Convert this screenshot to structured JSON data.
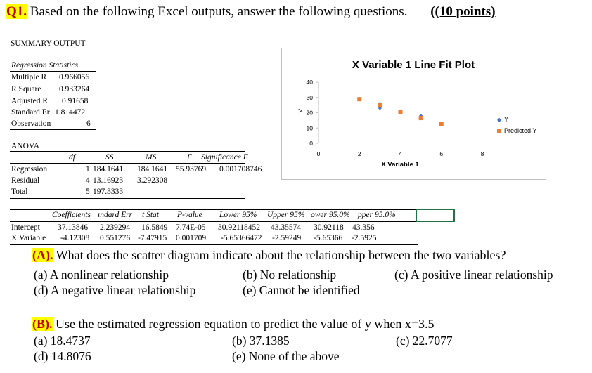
{
  "heading": {
    "number": "Q1.",
    "text": " Based on the following Excel outputs, answer the following questions.",
    "points": "(10 points)"
  },
  "summary": {
    "title": "SUMMARY OUTPUT",
    "reg_stats_title": "Regression Statistics",
    "reg_stats": [
      {
        "label": "Multiple R",
        "value": "0.966056"
      },
      {
        "label": "R Square",
        "value": "0.933264"
      },
      {
        "label": "Adjusted R",
        "value": "0.91658"
      },
      {
        "label": "Standard Er",
        "value": "1.814472"
      },
      {
        "label": "Observation",
        "value": "6"
      }
    ],
    "anova_title": "ANOVA",
    "anova_headers": [
      "df",
      "SS",
      "MS",
      "F",
      "Significance F"
    ],
    "anova_rows": [
      {
        "label": "Regression",
        "df": "1",
        "ss": "184.1641",
        "ms": "184.1641",
        "f": "55.93769",
        "sig": "0.001708746"
      },
      {
        "label": "Residual",
        "df": "4",
        "ss": "13.16923",
        "ms": "3.292308",
        "f": "",
        "sig": ""
      },
      {
        "label": "Total",
        "df": "5",
        "ss": "197.3333",
        "ms": "",
        "f": "",
        "sig": ""
      }
    ],
    "coef_headers": [
      "Coefficients",
      "ındard Err",
      "t Stat",
      "P-value",
      "Lower 95%",
      "Upper 95%",
      "ower 95.0%",
      "pper 95.0%"
    ],
    "coef_rows": [
      {
        "label": "Intercept",
        "vals": [
          "37.13846",
          "2.239294",
          "16.5849",
          "7.74E-05",
          "30.92118452",
          "43.35574",
          "30.92118",
          "43.356"
        ]
      },
      {
        "label": "X Variable",
        "vals": [
          "-4.12308",
          "0.551276",
          "-7.47915",
          "0.001709",
          "-5.65366472",
          "-2.59249",
          "-5.65366",
          "-2.5925"
        ]
      }
    ]
  },
  "chart_data": {
    "type": "scatter",
    "title": "X Variable 1 Line Fit Plot",
    "xlabel": "X Variable 1",
    "ylabel": "Y",
    "xlim": [
      0,
      8
    ],
    "ylim": [
      0,
      40
    ],
    "xticks": [
      "0",
      "2",
      "4",
      "6",
      "8"
    ],
    "yticks": [
      "0",
      "10",
      "20",
      "30",
      "40"
    ],
    "legend": "right",
    "series": [
      {
        "name": "Y",
        "marker": "diamond",
        "color": "#4472c4",
        "x": [
          2,
          3,
          3,
          4,
          5,
          6
        ],
        "y": [
          29,
          26,
          23,
          21,
          18,
          13
        ]
      },
      {
        "name": "Predicted Y",
        "marker": "square",
        "color": "#ed7d31",
        "x": [
          2,
          3,
          3,
          4,
          5,
          6
        ],
        "y": [
          28.89,
          24.77,
          24.77,
          20.65,
          16.52,
          12.4
        ]
      }
    ]
  },
  "questions": {
    "a": {
      "tag": "(A).",
      "text": " What does the scatter diagram indicate about the relationship between the two variables?",
      "options": [
        "(a) A nonlinear relationship",
        "(b) No relationship",
        "(c) A positive linear relationship",
        "(d) A negative linear relationship",
        "(e) Cannot be identified"
      ]
    },
    "b": {
      "tag": "(B).",
      "text": " Use the estimated regression equation to predict the value of y when x=3.5",
      "options": [
        "(a) 18.4737",
        "(b) 37.1385",
        "(c) 22.7077",
        "(d) 14.8076",
        "(e) None of the above"
      ]
    }
  }
}
